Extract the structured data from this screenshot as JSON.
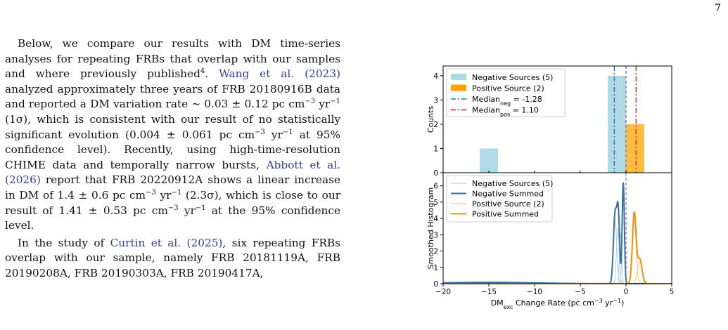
{
  "page": {
    "number": "7"
  },
  "paragraphs": [
    {
      "indent": true,
      "spans": [
        {
          "text": "Below, we compare our results with DM time-series analyses for repeating FRBs that overlap with our samples and where previously published"
        },
        {
          "text": "4",
          "sup": true
        },
        {
          "text": ".  "
        },
        {
          "text": "Wang et al. (2023)",
          "cite": true
        },
        {
          "text": " analyzed approximately three years of FRB 20180916B data and reported a DM variation rate ∼ 0.03  ± 0.12 pc cm"
        },
        {
          "text": "−3",
          "sup": true
        },
        {
          "text": " yr"
        },
        {
          "text": "−1",
          "sup": true
        },
        {
          "text": " (1σ), which is consistent with our result of no statistically significant evolution (0.004 ± 0.061 pc cm"
        },
        {
          "text": "−3",
          "sup": true
        },
        {
          "text": " yr"
        },
        {
          "text": "−1",
          "sup": true
        },
        {
          "text": " at 95% confidence level). Recently, using high-time-resolution CHIME data and temporally narrow bursts, "
        },
        {
          "text": "Abbott et al. (2026)",
          "cite": true
        },
        {
          "text": " report that FRB 20220912A shows a linear increase in DM of 1.4 ± 0.6 pc cm"
        },
        {
          "text": "−3",
          "sup": true
        },
        {
          "text": " yr"
        },
        {
          "text": "−1",
          "sup": true
        },
        {
          "text": " (2.3σ), which is close to our result of 1.41 ± 0.53 pc cm"
        },
        {
          "text": "−3",
          "sup": true
        },
        {
          "text": " yr"
        },
        {
          "text": "−1",
          "sup": true
        },
        {
          "text": " at the 95% confidence level."
        }
      ]
    },
    {
      "indent": true,
      "spans": [
        {
          "text": "In the study of "
        },
        {
          "text": "Curtin et al. (2025)",
          "cite": true
        },
        {
          "text": ", six repeating FRBs overlap with our sample, namely FRB 20181119A, FRB 20190208A, FRB 20190303A, FRB 20190417A,"
        }
      ]
    }
  ],
  "chart_data": [
    {
      "type": "bar",
      "ylabel": "Counts",
      "xlim": [
        -20,
        5
      ],
      "ylim": [
        0,
        4.4
      ],
      "yticks": [
        0,
        1,
        2,
        3,
        4
      ],
      "colors": {
        "negative": "#add8e6",
        "positive": "#ffa500",
        "median_neg": "#1f77b4",
        "median_pos": "#d62728",
        "zero_line": "#7f7f7f"
      },
      "series": [
        {
          "name": "Negative Sources (5)",
          "bins": [
            {
              "x0": -16,
              "x1": -14,
              "count": 1
            },
            {
              "x0": -2,
              "x1": 0,
              "count": 4
            }
          ]
        },
        {
          "name": "Positive Source (2)",
          "bins": [
            {
              "x0": 0,
              "x1": 2,
              "count": 2
            }
          ]
        }
      ],
      "lines": [
        {
          "label": "Median",
          "sub": "neg",
          "suffix": " = -1.28",
          "value": -1.28,
          "style": "dashdot"
        },
        {
          "label": "Median",
          "sub": "pos",
          "suffix": " = 1.10",
          "value": 1.1,
          "style": "dashdot"
        },
        {
          "value": 0,
          "style": "dashed"
        }
      ],
      "legend": "top-right"
    },
    {
      "type": "line",
      "ylabel": "Smoothed Histogram",
      "xlabel": {
        "main": "DM",
        "sub": "exc",
        "rest": " Change Rate (pc cm",
        "sup1": "−3",
        "mid": " yr",
        "sup2": "−1",
        "end": ")"
      },
      "xlim": [
        -20,
        5
      ],
      "ylim": [
        0,
        6.8
      ],
      "xticks": [
        -20,
        -15,
        -10,
        -5,
        0,
        5
      ],
      "xtick_labels": [
        "−20",
        "−15",
        "−10",
        "−5",
        "0",
        "5"
      ],
      "yticks": [
        0,
        1,
        2,
        3,
        4,
        5,
        6
      ],
      "colors": {
        "neg_source": "#a6cee3",
        "neg_sum": "#3a6ea5",
        "pos_source": "#fdbf6f",
        "pos_sum": "#ff8c00",
        "zero_line": "#7f7f7f"
      },
      "series": [
        {
          "name": "Negative Sources (5)",
          "kind": "thin",
          "peaks": [
            [
              -1.2,
              3.9,
              0.18
            ],
            [
              -0.9,
              3.4,
              0.15
            ],
            [
              -0.6,
              3.1,
              0.12
            ],
            [
              -0.3,
              5.0,
              0.12
            ]
          ]
        },
        {
          "name": "Negative Summed",
          "kind": "thick",
          "peaks": [
            [
              -1.2,
              4.2,
              0.18
            ],
            [
              -0.85,
              4.2,
              0.15
            ],
            [
              -0.3,
              6.2,
              0.12
            ],
            [
              -15,
              0.08,
              5.0
            ]
          ]
        },
        {
          "name": "Positive Source (2)",
          "kind": "thin",
          "peaks": [
            [
              0.9,
              4.2,
              0.2
            ],
            [
              1.5,
              1.4,
              0.25
            ]
          ]
        },
        {
          "name": "Positive Summed",
          "kind": "thick",
          "peaks": [
            [
              0.9,
              4.3,
              0.2
            ],
            [
              1.5,
              1.5,
              0.25
            ]
          ]
        }
      ],
      "legend": "top-left"
    }
  ]
}
